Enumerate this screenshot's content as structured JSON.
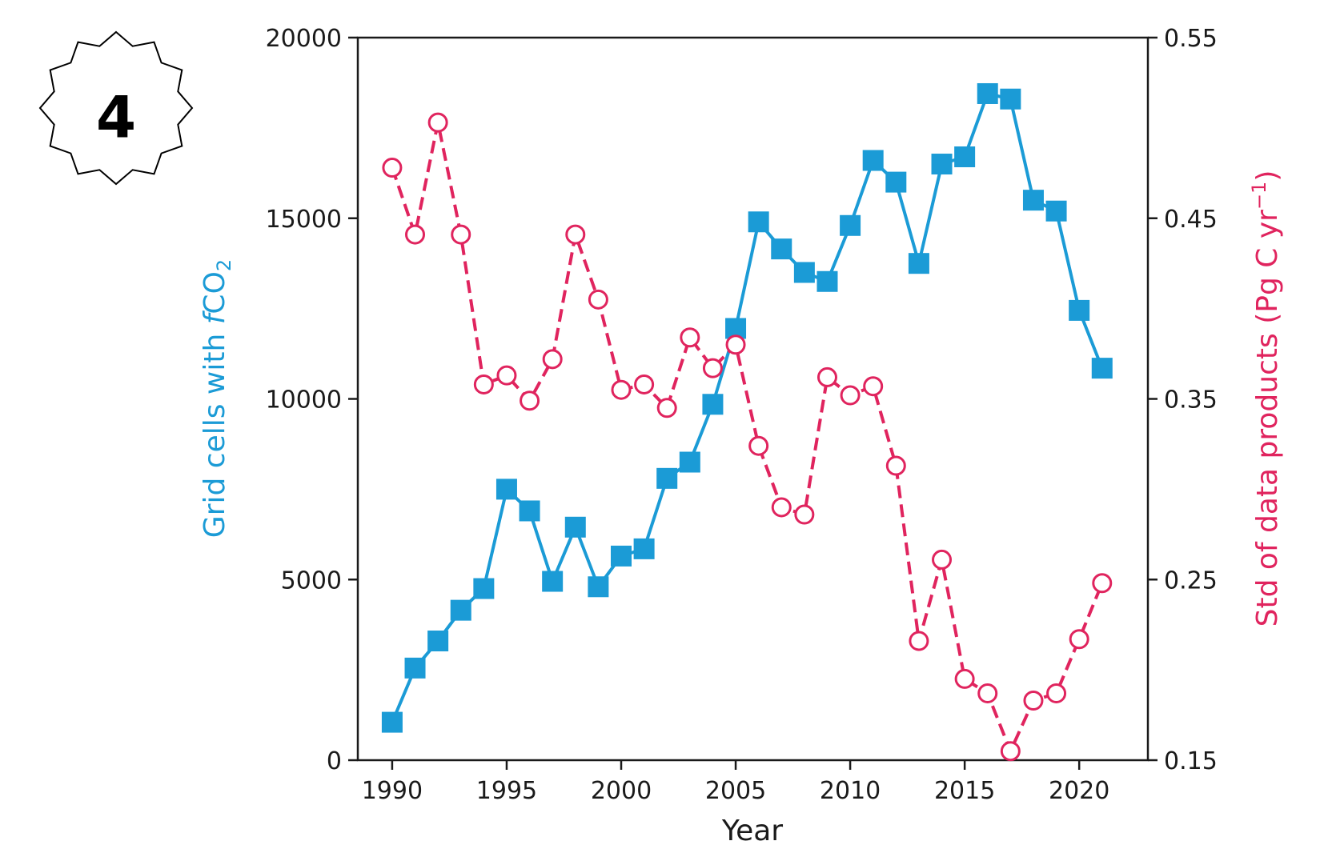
{
  "badge": {
    "label": "4"
  },
  "chart_data": {
    "type": "line",
    "title": "",
    "xlabel": "Year",
    "xlim": [
      1988.5,
      2023
    ],
    "xticks": [
      1990,
      1995,
      2000,
      2005,
      2010,
      2015,
      2020
    ],
    "x": [
      1990,
      1991,
      1992,
      1993,
      1994,
      1995,
      1996,
      1997,
      1998,
      1999,
      2000,
      2001,
      2002,
      2003,
      2004,
      2005,
      2006,
      2007,
      2008,
      2009,
      2010,
      2011,
      2012,
      2013,
      2014,
      2015,
      2016,
      2017,
      2018,
      2019,
      2020,
      2021
    ],
    "y_left": {
      "label_prefix": "Grid cells with ",
      "label_italic": "f",
      "label_main": "CO",
      "label_sub": "2",
      "ylim": [
        0,
        20000
      ],
      "ticks": [
        0,
        5000,
        10000,
        15000,
        20000
      ],
      "color": "#1b9bd6"
    },
    "y_right": {
      "label_main": "Std of data products (Pg C yr",
      "label_sup": "−1",
      "label_end": ")",
      "ylim": [
        0.15,
        0.55
      ],
      "ticks": [
        0.15,
        0.25,
        0.35,
        0.45,
        0.55
      ],
      "tick_labels": [
        "0.15",
        "0.25",
        "0.35",
        "0.45",
        "0.55"
      ],
      "color": "#e0245e"
    },
    "series": [
      {
        "axis": "left",
        "marker": "square",
        "line": "solid",
        "color": "#1b9bd6",
        "values": [
          1050,
          2550,
          3300,
          4150,
          4750,
          7500,
          6900,
          4950,
          6450,
          4800,
          5650,
          5850,
          7800,
          8250,
          9850,
          11950,
          14900,
          14150,
          13500,
          13250,
          14800,
          16600,
          16000,
          13750,
          16500,
          16700,
          18450,
          18300,
          15500,
          15200,
          12450,
          10850
        ]
      },
      {
        "axis": "right",
        "marker": "open-circle",
        "line": "dashed",
        "color": "#e0245e",
        "values": [
          0.478,
          0.441,
          0.503,
          0.441,
          0.358,
          0.363,
          0.349,
          0.372,
          0.441,
          0.405,
          0.355,
          0.358,
          0.345,
          0.384,
          0.367,
          0.38,
          0.324,
          0.29,
          0.286,
          0.362,
          0.352,
          0.357,
          0.313,
          0.216,
          0.261,
          0.195,
          0.187,
          0.155,
          0.183,
          0.187,
          0.217,
          0.248
        ]
      }
    ]
  }
}
